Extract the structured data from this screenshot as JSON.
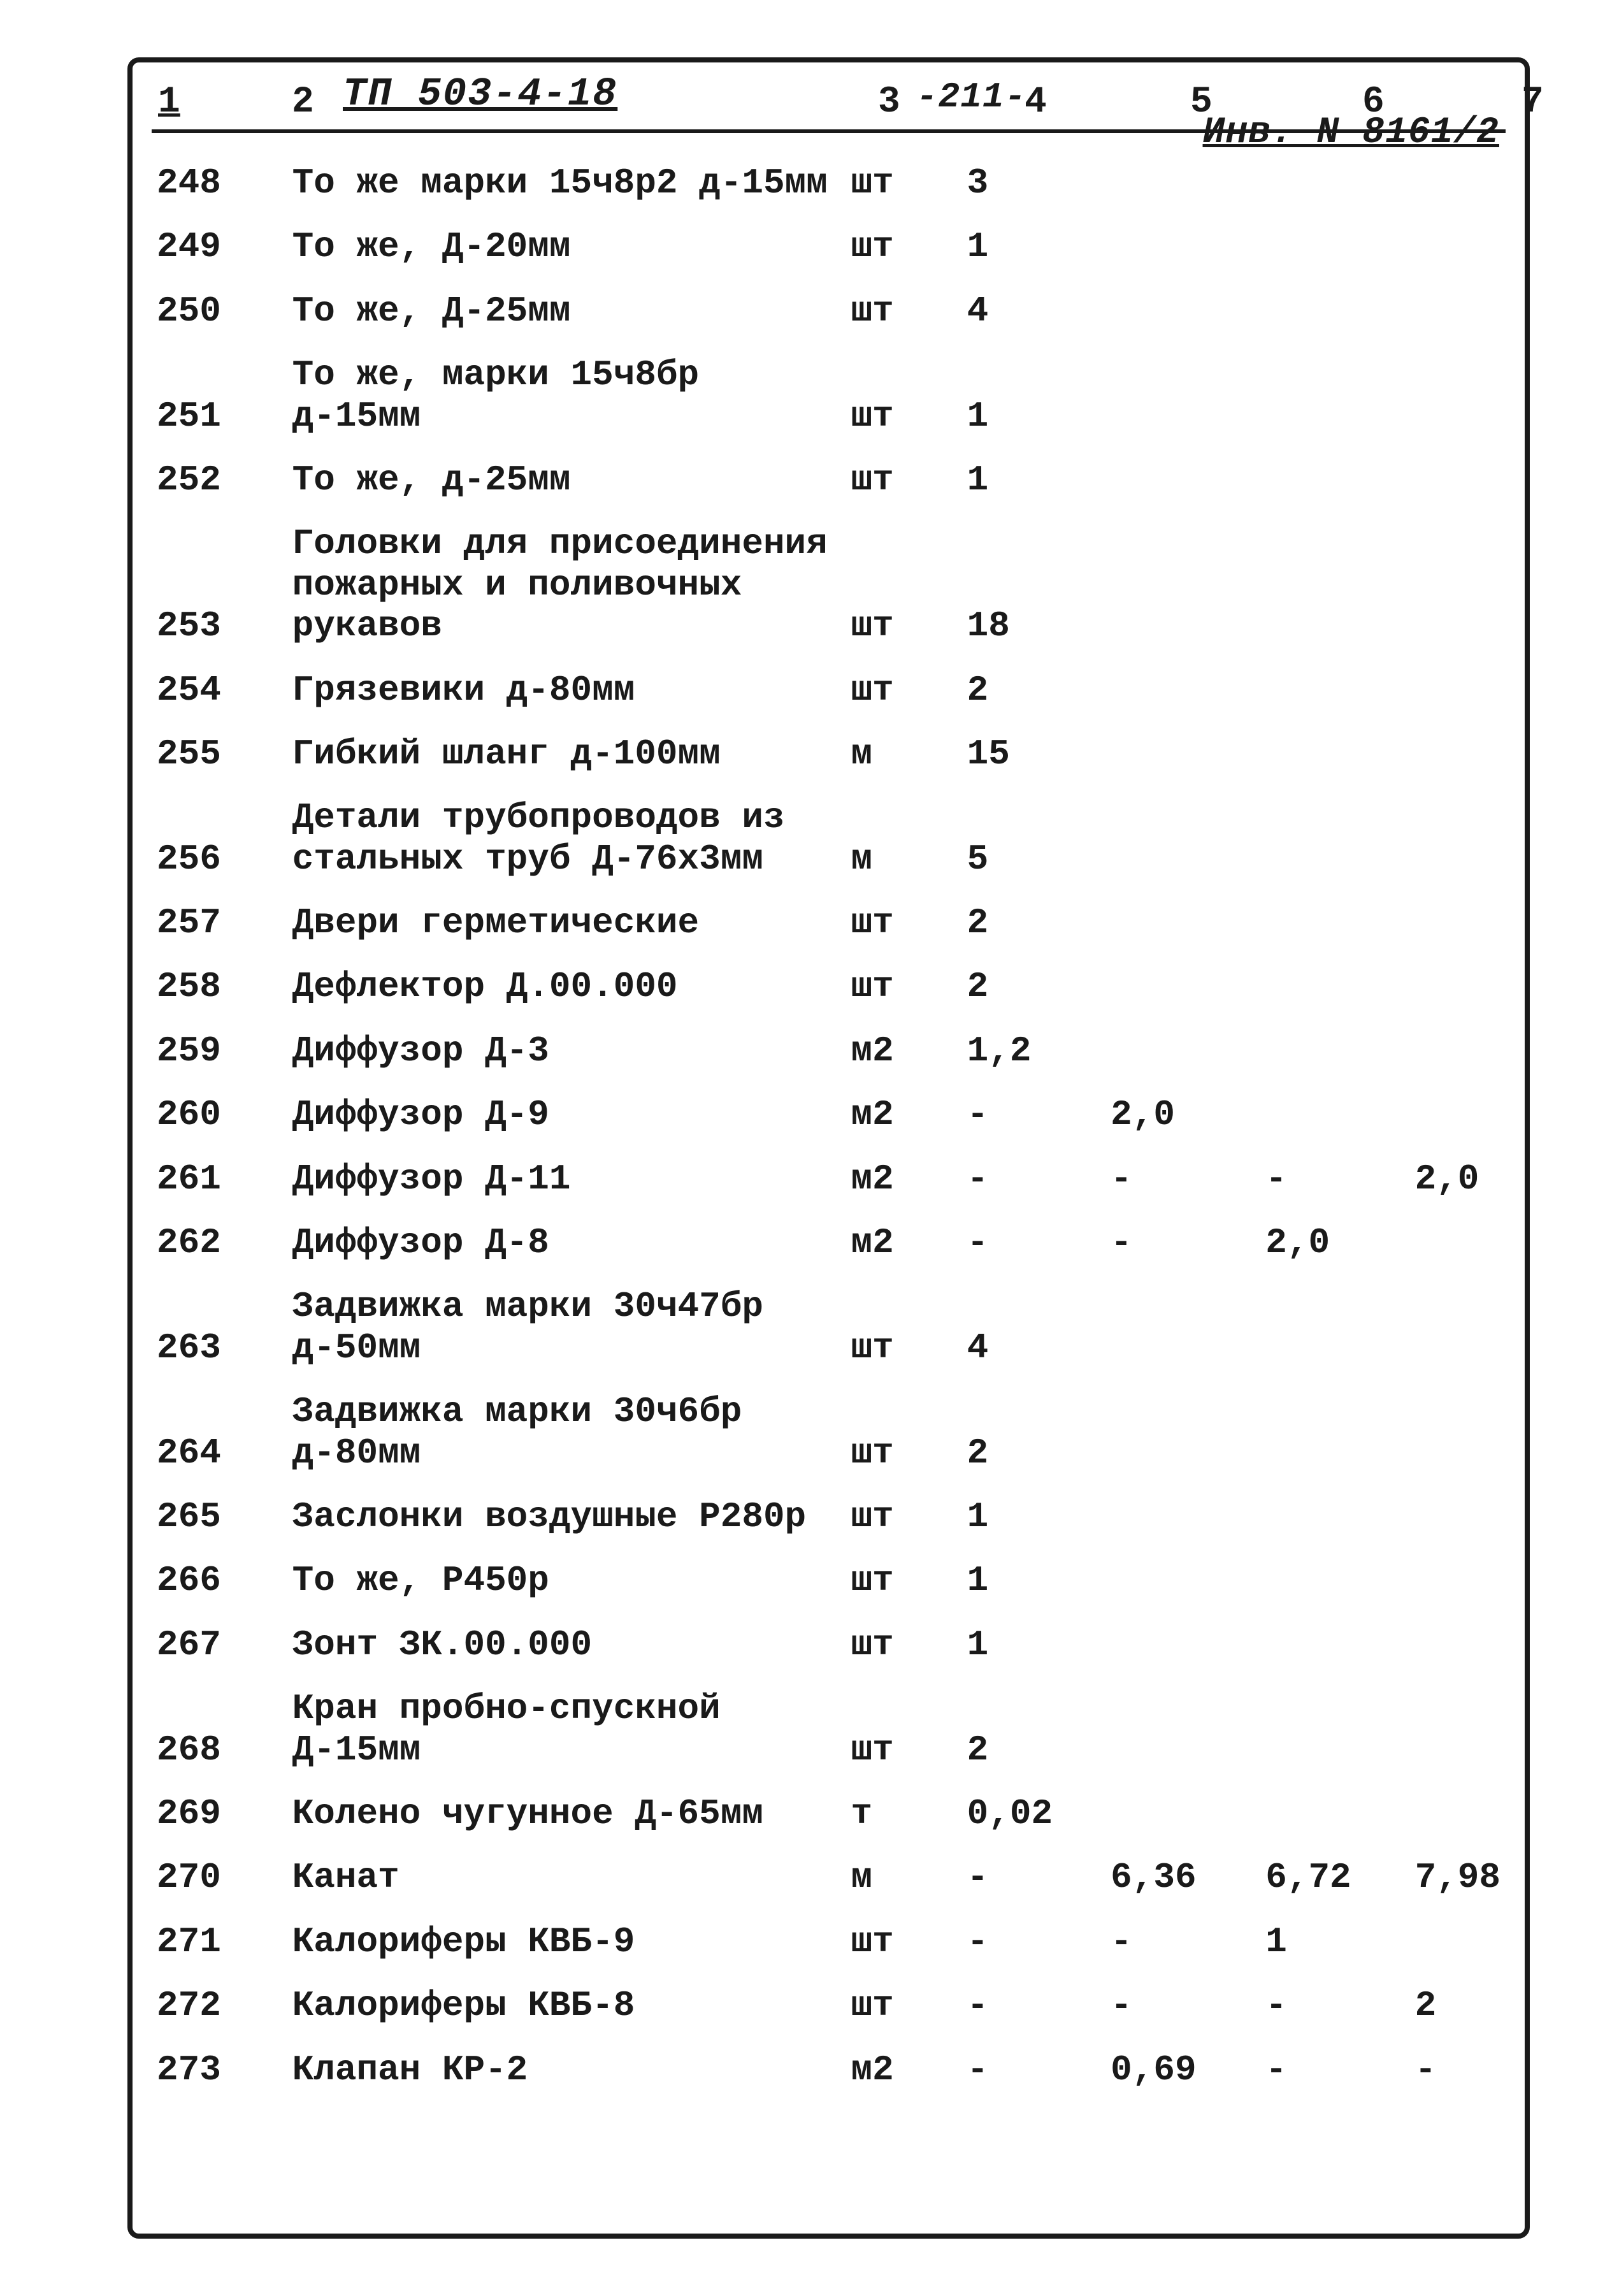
{
  "document": {
    "code": "ТП 503-4-18",
    "page_marker": "-211-",
    "inventory": "Инв. N 8161/2",
    "columns": [
      "1",
      "2",
      "3",
      "4",
      "5",
      "6",
      "7"
    ],
    "text_color": "#1a1a1a",
    "background_color": "#ffffff",
    "border_color": "#1a1a1a",
    "font_family": "Courier New",
    "base_font_size_pt": 42
  },
  "rows": [
    {
      "n": "248",
      "desc": "То же марки 15ч8р2 д-15мм",
      "unit": "шт",
      "v4": "3",
      "v5": "",
      "v6": "",
      "v7": ""
    },
    {
      "n": "249",
      "desc": "То же, Д-20мм",
      "unit": "шт",
      "v4": "1",
      "v5": "",
      "v6": "",
      "v7": ""
    },
    {
      "n": "250",
      "desc": "То же, Д-25мм",
      "unit": "шт",
      "v4": "4",
      "v5": "",
      "v6": "",
      "v7": ""
    },
    {
      "n": "251",
      "desc": "То же, марки 15ч8бр д-15мм",
      "unit": "шт",
      "v4": "1",
      "v5": "",
      "v6": "",
      "v7": ""
    },
    {
      "n": "252",
      "desc": "То же, д-25мм",
      "unit": "шт",
      "v4": "1",
      "v5": "",
      "v6": "",
      "v7": ""
    },
    {
      "n": "253",
      "desc": "Головки для присоединения пожарных и поливочных рукавов",
      "unit": "шт",
      "v4": "18",
      "v5": "",
      "v6": "",
      "v7": ""
    },
    {
      "n": "254",
      "desc": "Грязевики д-80мм",
      "unit": "шт",
      "v4": "2",
      "v5": "",
      "v6": "",
      "v7": ""
    },
    {
      "n": "255",
      "desc": "Гибкий шланг д-100мм",
      "unit": "м",
      "v4": "15",
      "v5": "",
      "v6": "",
      "v7": ""
    },
    {
      "n": "256",
      "desc": "Детали трубопроводов из стальных труб Д-76х3мм",
      "unit": "м",
      "v4": "5",
      "v5": "",
      "v6": "",
      "v7": ""
    },
    {
      "n": "257",
      "desc": "Двери герметические",
      "unit": "шт",
      "v4": "2",
      "v5": "",
      "v6": "",
      "v7": ""
    },
    {
      "n": "258",
      "desc": "Дефлектор Д.00.000",
      "unit": "шт",
      "v4": "2",
      "v5": "",
      "v6": "",
      "v7": ""
    },
    {
      "n": "259",
      "desc": "Диффузор Д-3",
      "unit": "м2",
      "v4": "1,2",
      "v5": "",
      "v6": "",
      "v7": ""
    },
    {
      "n": "260",
      "desc": "Диффузор Д-9",
      "unit": "м2",
      "v4": "-",
      "v5": "2,0",
      "v6": "",
      "v7": ""
    },
    {
      "n": "261",
      "desc": "Диффузор Д-11",
      "unit": "м2",
      "v4": "-",
      "v5": "-",
      "v6": "-",
      "v7": "2,0"
    },
    {
      "n": "262",
      "desc": "Диффузор Д-8",
      "unit": "м2",
      "v4": "-",
      "v5": "-",
      "v6": "2,0",
      "v7": ""
    },
    {
      "n": "263",
      "desc": "Задвижка марки 30ч47бр д-50мм",
      "unit": "шт",
      "v4": "4",
      "v5": "",
      "v6": "",
      "v7": ""
    },
    {
      "n": "264",
      "desc": "Задвижка марки 30ч6бр д-80мм",
      "unit": "шт",
      "v4": "2",
      "v5": "",
      "v6": "",
      "v7": ""
    },
    {
      "n": "265",
      "desc": "Заслонки воздушные Р280р",
      "unit": "шт",
      "v4": "1",
      "v5": "",
      "v6": "",
      "v7": ""
    },
    {
      "n": "266",
      "desc": "То же, Р450р",
      "unit": "шт",
      "v4": "1",
      "v5": "",
      "v6": "",
      "v7": ""
    },
    {
      "n": "267",
      "desc": "Зонт ЗК.00.000",
      "unit": "шт",
      "v4": "1",
      "v5": "",
      "v6": "",
      "v7": ""
    },
    {
      "n": "268",
      "desc": "Кран пробно-спускной Д-15мм",
      "unit": "шт",
      "v4": "2",
      "v5": "",
      "v6": "",
      "v7": ""
    },
    {
      "n": "269",
      "desc": "Колено чугунное Д-65мм",
      "unit": "т",
      "v4": "0,02",
      "v5": "",
      "v6": "",
      "v7": ""
    },
    {
      "n": "270",
      "desc": "Канат",
      "unit": "м",
      "v4": "-",
      "v5": "6,36",
      "v6": "6,72",
      "v7": "7,98"
    },
    {
      "n": "271",
      "desc": "Калориферы КВБ-9",
      "unit": "шт",
      "v4": "-",
      "v5": "-",
      "v6": "1",
      "v7": ""
    },
    {
      "n": "272",
      "desc": "Калориферы КВБ-8",
      "unit": "шт",
      "v4": "-",
      "v5": "-",
      "v6": "-",
      "v7": "2"
    },
    {
      "n": "273",
      "desc": "Клапан КР-2",
      "unit": "м2",
      "v4": "-",
      "v5": "0,69",
      "v6": "-",
      "v7": "-"
    }
  ]
}
